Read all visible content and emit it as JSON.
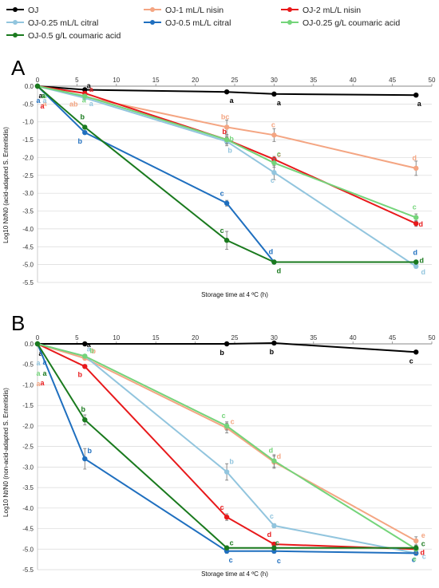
{
  "legend": [
    {
      "name": "OJ",
      "color": "#000000"
    },
    {
      "name": "OJ-1 mL/L nisin",
      "color": "#f4a582"
    },
    {
      "name": "OJ-2 mL/L nisin",
      "color": "#e8191b"
    },
    {
      "name": "OJ-0.25 mL/L citral",
      "color": "#92c5de"
    },
    {
      "name": "OJ-0.5 mL/L citral",
      "color": "#1f6fbf"
    },
    {
      "name": "OJ-0.25 g/L coumaric acid",
      "color": "#74d47a"
    },
    {
      "name": "OJ-0.5 g/L coumaric acid",
      "color": "#1a7a1e"
    }
  ],
  "chart_data": [
    {
      "type": "line",
      "panel": "A",
      "xlabel": "Storage time at 4 ºC (h)",
      "ylabel": "Log10 Nt/N0 (acid-adapted S. Enteritidis)",
      "xlim": [
        0,
        50
      ],
      "ylim": [
        -5.5,
        0.0
      ],
      "x_ticks": [
        "0",
        "5",
        "10",
        "15",
        "20",
        "25",
        "30",
        "35",
        "40",
        "45",
        "50"
      ],
      "y_ticks": [
        "0.0",
        "-0.5",
        "-1.0",
        "-1.5",
        "-2.0",
        "-2.5",
        "-3.0",
        "-3.5",
        "-4.0",
        "-4.5",
        "-5.0",
        "-5.5"
      ],
      "x": [
        0,
        6,
        24,
        30,
        48
      ],
      "series": [
        {
          "name": "OJ",
          "color": "#000000",
          "values": [
            0,
            -0.1,
            -0.16,
            -0.22,
            -0.25
          ],
          "err": [
            0,
            0,
            0,
            0,
            0
          ],
          "letters": [
            "a",
            "a",
            "a",
            "a",
            "a"
          ]
        },
        {
          "name": "OJ-1 mL/L nisin",
          "color": "#f4a582",
          "values": [
            0,
            -0.3,
            -1.15,
            -1.37,
            -2.3
          ],
          "err": [
            0,
            0,
            0.2,
            0.18,
            0.2
          ],
          "letters": [
            "a",
            "ab",
            "bc",
            "c",
            "d"
          ]
        },
        {
          "name": "OJ-2 mL/L nisin",
          "color": "#e8191b",
          "values": [
            0,
            -0.2,
            -1.5,
            -2.05,
            -3.85
          ],
          "err": [
            0,
            0,
            0.08,
            0.08,
            0.08
          ],
          "letters": [
            "a",
            "a",
            "b",
            "c",
            "d"
          ]
        },
        {
          "name": "OJ-0.25 mL/L citral",
          "color": "#92c5de",
          "values": [
            0,
            -0.33,
            -1.55,
            -2.42,
            -5.05
          ],
          "err": [
            0,
            0,
            0.12,
            0.2,
            0.05
          ],
          "letters": [
            "a",
            "a",
            "b",
            "c",
            "d"
          ]
        },
        {
          "name": "OJ-0.5 mL/L citral",
          "color": "#1f6fbf",
          "values": [
            0,
            -1.3,
            -3.28,
            -4.93,
            -4.93
          ],
          "err": [
            0,
            0.05,
            0.08,
            0.05,
            0.05
          ],
          "letters": [
            "a",
            "b",
            "c",
            "d",
            "d"
          ]
        },
        {
          "name": "OJ-0.25 g/L coumaric acid",
          "color": "#74d47a",
          "values": [
            0,
            -0.28,
            -1.5,
            -2.15,
            -3.68
          ],
          "err": [
            0,
            0,
            0.12,
            0.12,
            0.1
          ],
          "letters": [
            "a",
            "a",
            "b",
            "c",
            "c"
          ]
        },
        {
          "name": "OJ-0.5 g/L coumaric acid",
          "color": "#1a7a1e",
          "values": [
            0,
            -1.15,
            -4.32,
            -4.93,
            -4.93
          ],
          "err": [
            0,
            0,
            0.25,
            0.05,
            0.05
          ],
          "letters": [
            "a",
            "b",
            "c",
            "d",
            "d"
          ]
        }
      ]
    },
    {
      "type": "line",
      "panel": "B",
      "xlabel": "Storage time at 4 ºC (h)",
      "ylabel": "Log10 Nt/N0 (non-acid-adapted S. Enteritidis)",
      "xlim": [
        0,
        50
      ],
      "ylim": [
        -5.5,
        0.0
      ],
      "x_ticks": [
        "0",
        "5",
        "10",
        "15",
        "20",
        "25",
        "30",
        "35",
        "40",
        "45",
        "50"
      ],
      "y_ticks": [
        "0.0",
        "-0.5",
        "-1.0",
        "-1.5",
        "-2.0",
        "-2.5",
        "-3.0",
        "-3.5",
        "-4.0",
        "-4.5",
        "-5.0",
        "-5.5"
      ],
      "x": [
        0,
        6,
        24,
        30,
        48
      ],
      "series": [
        {
          "name": "OJ",
          "color": "#000000",
          "values": [
            0,
            0,
            0,
            0.02,
            -0.2
          ],
          "err": [
            0,
            0,
            0,
            0,
            0
          ],
          "letters": [
            "a",
            "a",
            "b",
            "b",
            "c"
          ]
        },
        {
          "name": "OJ-1 mL/L nisin",
          "color": "#f4a582",
          "values": [
            0,
            -0.35,
            -2.05,
            -2.88,
            -4.8
          ],
          "err": [
            0,
            0,
            0.12,
            0.15,
            0.1
          ],
          "letters": [
            "a",
            "b",
            "c",
            "d",
            "e"
          ]
        },
        {
          "name": "OJ-2 mL/L nisin",
          "color": "#e8191b",
          "values": [
            0,
            -0.55,
            -4.22,
            -4.88,
            -5.0
          ],
          "err": [
            0,
            0,
            0.08,
            0.05,
            0.05
          ],
          "letters": [
            "a",
            "b",
            "c",
            "d",
            "d"
          ]
        },
        {
          "name": "OJ-0.25 mL/L citral",
          "color": "#92c5de",
          "values": [
            0,
            -0.3,
            -3.12,
            -4.43,
            -5.1
          ],
          "err": [
            0,
            0,
            0.2,
            0.05,
            0.05
          ],
          "letters": [
            "a",
            "a",
            "b",
            "c",
            "c"
          ]
        },
        {
          "name": "OJ-0.5 mL/L citral",
          "color": "#1f6fbf",
          "values": [
            0,
            -2.8,
            -5.05,
            -5.05,
            -5.1
          ],
          "err": [
            0,
            0.25,
            0.05,
            0.05,
            0.05
          ],
          "letters": [
            "a",
            "b",
            "c",
            "c",
            "c"
          ]
        },
        {
          "name": "OJ-0.25 g/L coumaric acid",
          "color": "#74d47a",
          "values": [
            0,
            -0.3,
            -2.0,
            -2.85,
            -5.0
          ],
          "err": [
            0,
            0,
            0.1,
            0.15,
            0.1
          ],
          "letters": [
            "a",
            "b",
            "c",
            "d",
            "e"
          ]
        },
        {
          "name": "OJ-0.5 g/L coumaric acid",
          "color": "#1a7a1e",
          "values": [
            0,
            -1.85,
            -4.97,
            -4.97,
            -4.97
          ],
          "err": [
            0,
            0.12,
            0.05,
            0.05,
            0.05
          ],
          "letters": [
            "a",
            "b",
            "c",
            "c",
            "c"
          ]
        }
      ]
    }
  ]
}
